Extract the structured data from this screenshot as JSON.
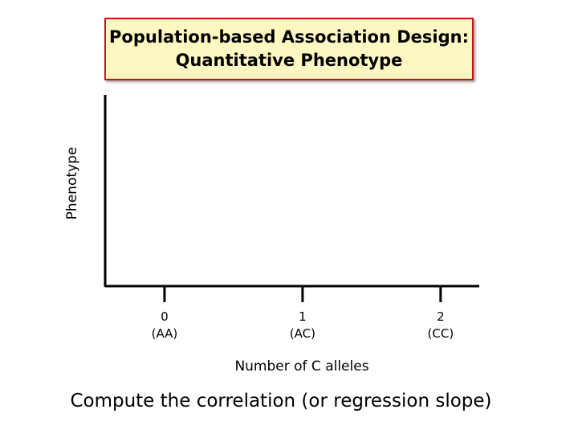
{
  "title": "Population-based Association Design:\nQuantitative Phenotype",
  "footer": "Compute the correlation (or regression slope)",
  "chart_data": {
    "type": "scatter",
    "x_label": "Number of C alleles",
    "y_label": "Phenotype",
    "xlim": [
      -0.43,
      2.28
    ],
    "xticks": [
      {
        "value": 0,
        "label": "0\n(AA)"
      },
      {
        "value": 1,
        "label": "1\n(AC)"
      },
      {
        "value": 2,
        "label": "2\n(CC)"
      }
    ],
    "series": []
  }
}
